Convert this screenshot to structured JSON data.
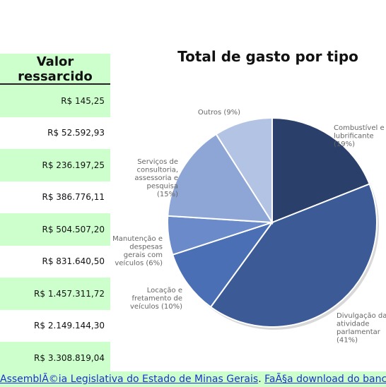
{
  "table": {
    "header": "Valor ressarcido",
    "rows": [
      "R$ 145,25",
      "R$ 52.592,93",
      "R$ 236.197,25",
      "R$ 386.776,11",
      "R$ 504.507,20",
      "R$ 831.640,50",
      "R$ 1.457.311,72",
      "R$ 2.149.144,30",
      "R$ 3.308.819,04"
    ]
  },
  "chart_data": {
    "type": "pie",
    "title": "Total de gasto por tipo",
    "slices": [
      {
        "label": "Combustível e lubrificante",
        "value": 19,
        "pct_label": "(19%)",
        "color": "#2b3f6b"
      },
      {
        "label": "Divulgação da atividade parlamentar",
        "value": 41,
        "pct_label": "(41%)",
        "color": "#3b5a96"
      },
      {
        "label": "Locação e fretamento de veículos",
        "value": 10,
        "pct_label": "(10%)",
        "color": "#4a6fb5"
      },
      {
        "label": "Manutenção e despesas gerais com veículos",
        "value": 6,
        "pct_label": "(6%)",
        "color": "#6a8ac9"
      },
      {
        "label": "Serviços de consultoria, assessoria e pesquisa",
        "value": 15,
        "pct_label": "(15%)",
        "color": "#8da6d6"
      },
      {
        "label": "Outros",
        "value": 9,
        "pct_label": "(9%)",
        "color": "#b3c3e3"
      }
    ]
  },
  "footer": {
    "link1": "AssemblÃ©ia Legislativa do Estado de Minas Gerais",
    "separator": ".",
    "link2": "FaÃ§a download do banco de dados"
  }
}
